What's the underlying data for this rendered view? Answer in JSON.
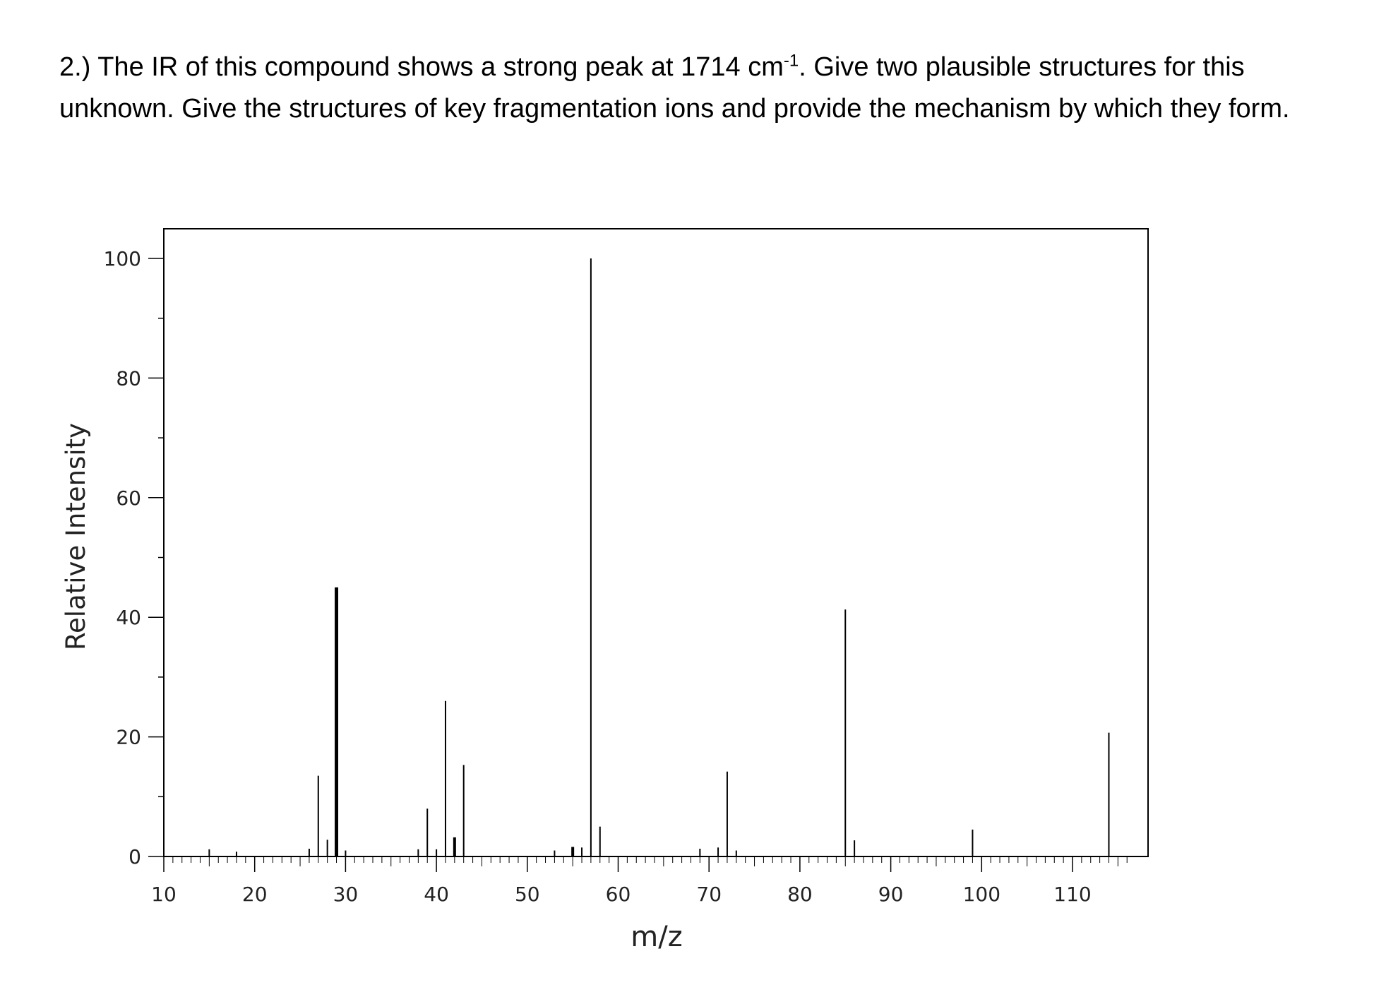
{
  "question": {
    "part1": "2.) The IR of this compound shows a strong peak at 1714 cm",
    "sup": "-1",
    "part2": ". Give two plausible structures for this unknown. Give the structures of key fragmentation ions and provide the mechanism by which they form."
  },
  "chart_data": {
    "type": "bar",
    "title": "",
    "xlabel": "m/z",
    "ylabel": "Relative Intensity",
    "xlim": [
      10,
      116
    ],
    "ylim": [
      0,
      105
    ],
    "xticks": [
      10,
      20,
      30,
      40,
      50,
      60,
      70,
      80,
      90,
      100,
      110
    ],
    "yticks": [
      0,
      20,
      40,
      60,
      80,
      100
    ],
    "grid": false,
    "x": [
      15,
      18,
      26,
      27,
      28,
      29,
      30,
      38,
      39,
      40,
      41,
      42,
      43,
      53,
      55,
      56,
      57,
      58,
      69,
      71,
      72,
      73,
      85,
      86,
      99,
      114
    ],
    "values": [
      1.2,
      0.8,
      1.3,
      13.5,
      2.8,
      45,
      1.0,
      1.2,
      8.0,
      1.2,
      26,
      3.2,
      15.3,
      1.0,
      1.6,
      1.5,
      100,
      5.0,
      1.3,
      1.5,
      14.2,
      1.0,
      41.3,
      2.7,
      4.5,
      20.7
    ]
  }
}
